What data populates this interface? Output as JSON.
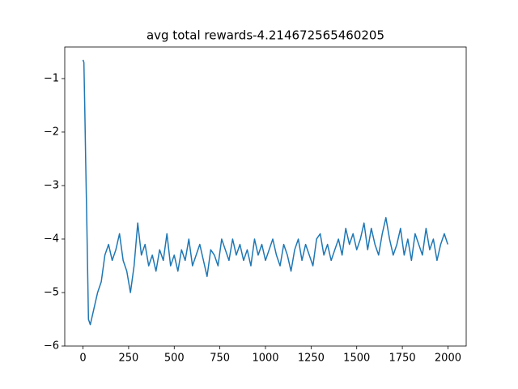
{
  "chart_data": {
    "type": "line",
    "title": "avg total rewards-4.214672565460205",
    "x": [
      0,
      5,
      10,
      15,
      20,
      25,
      30,
      40,
      60,
      80,
      100,
      120,
      140,
      160,
      180,
      200,
      220,
      240,
      260,
      280,
      300,
      320,
      340,
      360,
      380,
      400,
      420,
      440,
      460,
      480,
      500,
      520,
      540,
      560,
      580,
      600,
      620,
      640,
      660,
      680,
      700,
      720,
      740,
      760,
      780,
      800,
      820,
      840,
      860,
      880,
      900,
      920,
      940,
      960,
      980,
      1000,
      1020,
      1040,
      1060,
      1080,
      1100,
      1120,
      1140,
      1160,
      1180,
      1200,
      1220,
      1240,
      1260,
      1280,
      1300,
      1320,
      1340,
      1360,
      1380,
      1400,
      1420,
      1440,
      1460,
      1480,
      1500,
      1520,
      1540,
      1560,
      1580,
      1600,
      1620,
      1640,
      1660,
      1680,
      1700,
      1720,
      1740,
      1760,
      1780,
      1800,
      1820,
      1840,
      1860,
      1880,
      1900,
      1920,
      1940,
      1960,
      1980,
      1999
    ],
    "values": [
      -0.65,
      -0.7,
      -1.6,
      -2.6,
      -3.5,
      -4.5,
      -5.5,
      -5.6,
      -5.3,
      -5.0,
      -4.8,
      -4.3,
      -4.1,
      -4.4,
      -4.2,
      -3.9,
      -4.4,
      -4.6,
      -5.0,
      -4.5,
      -3.7,
      -4.3,
      -4.1,
      -4.5,
      -4.3,
      -4.6,
      -4.2,
      -4.4,
      -3.9,
      -4.5,
      -4.3,
      -4.6,
      -4.2,
      -4.4,
      -4.0,
      -4.5,
      -4.3,
      -4.1,
      -4.4,
      -4.7,
      -4.2,
      -4.3,
      -4.5,
      -4.0,
      -4.2,
      -4.4,
      -4.0,
      -4.3,
      -4.1,
      -4.4,
      -4.2,
      -4.5,
      -4.0,
      -4.3,
      -4.1,
      -4.4,
      -4.2,
      -4.0,
      -4.3,
      -4.5,
      -4.1,
      -4.3,
      -4.6,
      -4.2,
      -4.0,
      -4.4,
      -4.1,
      -4.3,
      -4.5,
      -4.0,
      -3.9,
      -4.3,
      -4.1,
      -4.4,
      -4.2,
      -4.0,
      -4.3,
      -3.8,
      -4.1,
      -3.9,
      -4.2,
      -4.0,
      -3.7,
      -4.2,
      -3.8,
      -4.1,
      -4.3,
      -3.9,
      -3.6,
      -4.0,
      -4.3,
      -4.1,
      -3.8,
      -4.3,
      -4.0,
      -4.4,
      -3.9,
      -4.1,
      -4.3,
      -3.8,
      -4.2,
      -4.0,
      -4.4,
      -4.1,
      -3.9,
      -4.1
    ],
    "color": "#1f77b4",
    "xlim": [
      -100,
      2100
    ],
    "xticks": [
      0,
      250,
      500,
      750,
      1000,
      1250,
      1500,
      1750,
      2000
    ],
    "ylim": [
      -6.0,
      -0.41
    ],
    "yticks": [
      {
        "value": -6,
        "label": "−6"
      },
      {
        "value": -5,
        "label": "−5"
      },
      {
        "value": -4,
        "label": "−4"
      },
      {
        "value": -3,
        "label": "−3"
      },
      {
        "value": -2,
        "label": "−2"
      },
      {
        "value": -1,
        "label": "−1"
      }
    ]
  }
}
